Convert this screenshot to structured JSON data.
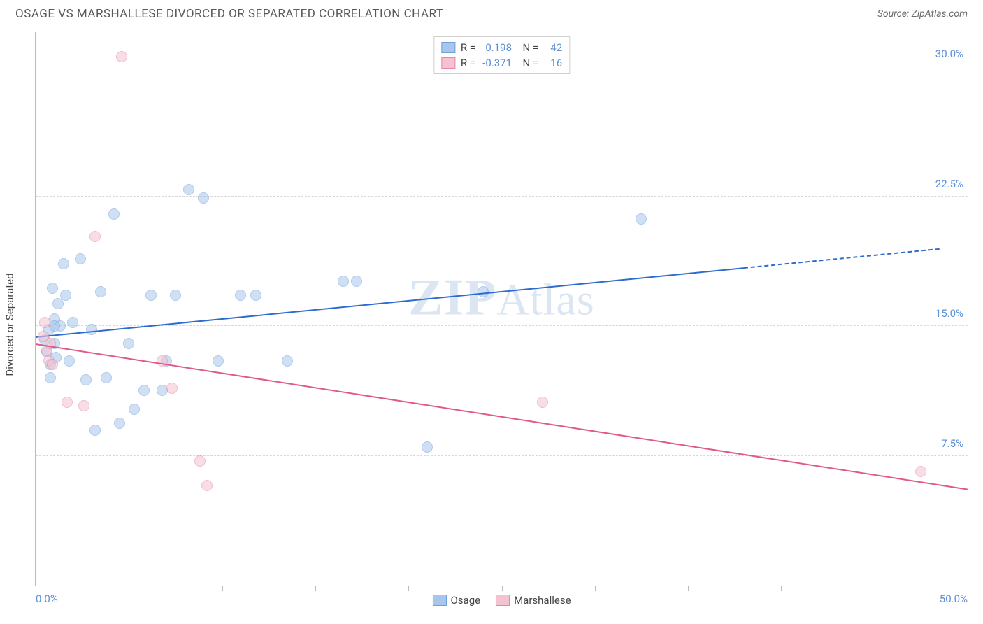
{
  "header": {
    "title": "OSAGE VS MARSHALLESE DIVORCED OR SEPARATED CORRELATION CHART",
    "source": "Source: ZipAtlas.com"
  },
  "ylabel": "Divorced or Separated",
  "watermark": "ZIPAtlas",
  "chart": {
    "type": "scatter",
    "background_color": "#ffffff",
    "grid_color": "#d8d8d8",
    "axis_color": "#bbbbbb",
    "tick_label_color": "#5b8fd6",
    "xlim": [
      0,
      50
    ],
    "ylim": [
      0,
      32
    ],
    "y_ticks": [
      7.5,
      15.0,
      22.5,
      30.0
    ],
    "y_tick_labels": [
      "7.5%",
      "15.0%",
      "22.5%",
      "30.0%"
    ],
    "x_ticks": [
      0,
      5,
      10,
      15,
      20,
      25,
      30,
      35,
      40,
      45,
      50
    ],
    "x_lim_labels": {
      "min": "0.0%",
      "max": "50.0%"
    },
    "point_radius": 8,
    "point_opacity": 0.55,
    "series": [
      {
        "name": "Osage",
        "fill_color": "#a8c6ec",
        "stroke_color": "#6fa0dd",
        "line_color": "#2e6bd0",
        "R": "0.198",
        "N": "42",
        "trend": {
          "x1": 0,
          "y1": 14.4,
          "x2": 38,
          "y2": 18.4,
          "x2_dash": 48.5,
          "y2_dash": 19.5
        },
        "points": [
          [
            0.5,
            14.2
          ],
          [
            0.6,
            13.5
          ],
          [
            0.7,
            14.8
          ],
          [
            0.8,
            12.8
          ],
          [
            0.9,
            17.2
          ],
          [
            1.0,
            15.4
          ],
          [
            1.0,
            14.0
          ],
          [
            1.1,
            13.2
          ],
          [
            1.2,
            16.3
          ],
          [
            1.3,
            15.0
          ],
          [
            1.5,
            18.6
          ],
          [
            1.6,
            16.8
          ],
          [
            1.8,
            13.0
          ],
          [
            2.0,
            15.2
          ],
          [
            2.4,
            18.9
          ],
          [
            2.7,
            11.9
          ],
          [
            3.0,
            14.8
          ],
          [
            3.2,
            9.0
          ],
          [
            3.5,
            17.0
          ],
          [
            3.8,
            12.0
          ],
          [
            4.2,
            21.5
          ],
          [
            4.5,
            9.4
          ],
          [
            5.0,
            14.0
          ],
          [
            5.3,
            10.2
          ],
          [
            5.8,
            11.3
          ],
          [
            6.2,
            16.8
          ],
          [
            6.8,
            11.3
          ],
          [
            7.0,
            13.0
          ],
          [
            7.5,
            16.8
          ],
          [
            8.2,
            22.9
          ],
          [
            9.0,
            22.4
          ],
          [
            9.8,
            13.0
          ],
          [
            11.0,
            16.8
          ],
          [
            11.8,
            16.8
          ],
          [
            13.5,
            13.0
          ],
          [
            16.5,
            17.6
          ],
          [
            17.2,
            17.6
          ],
          [
            21.0,
            8.0
          ],
          [
            24.0,
            17.0
          ],
          [
            32.5,
            21.2
          ],
          [
            0.8,
            12.0
          ],
          [
            1.0,
            15.0
          ]
        ]
      },
      {
        "name": "Marshallese",
        "fill_color": "#f4c2d0",
        "stroke_color": "#e787a4",
        "line_color": "#e05a86",
        "R": "-0.371",
        "N": "16",
        "trend": {
          "x1": 0,
          "y1": 14.0,
          "x2": 50,
          "y2": 5.6,
          "x2_dash": 50,
          "y2_dash": 5.6
        },
        "points": [
          [
            0.4,
            14.4
          ],
          [
            0.5,
            15.2
          ],
          [
            0.6,
            13.6
          ],
          [
            0.7,
            13.0
          ],
          [
            0.8,
            14.0
          ],
          [
            0.9,
            12.8
          ],
          [
            1.7,
            10.6
          ],
          [
            2.6,
            10.4
          ],
          [
            3.2,
            20.2
          ],
          [
            4.6,
            30.6
          ],
          [
            6.8,
            13.0
          ],
          [
            7.3,
            11.4
          ],
          [
            8.8,
            7.2
          ],
          [
            9.2,
            5.8
          ],
          [
            27.2,
            10.6
          ],
          [
            47.5,
            6.6
          ]
        ]
      }
    ]
  },
  "legend_bottom": [
    {
      "label": "Osage",
      "fill": "#a8c6ec",
      "stroke": "#6fa0dd"
    },
    {
      "label": "Marshallese",
      "fill": "#f4c2d0",
      "stroke": "#e787a4"
    }
  ]
}
